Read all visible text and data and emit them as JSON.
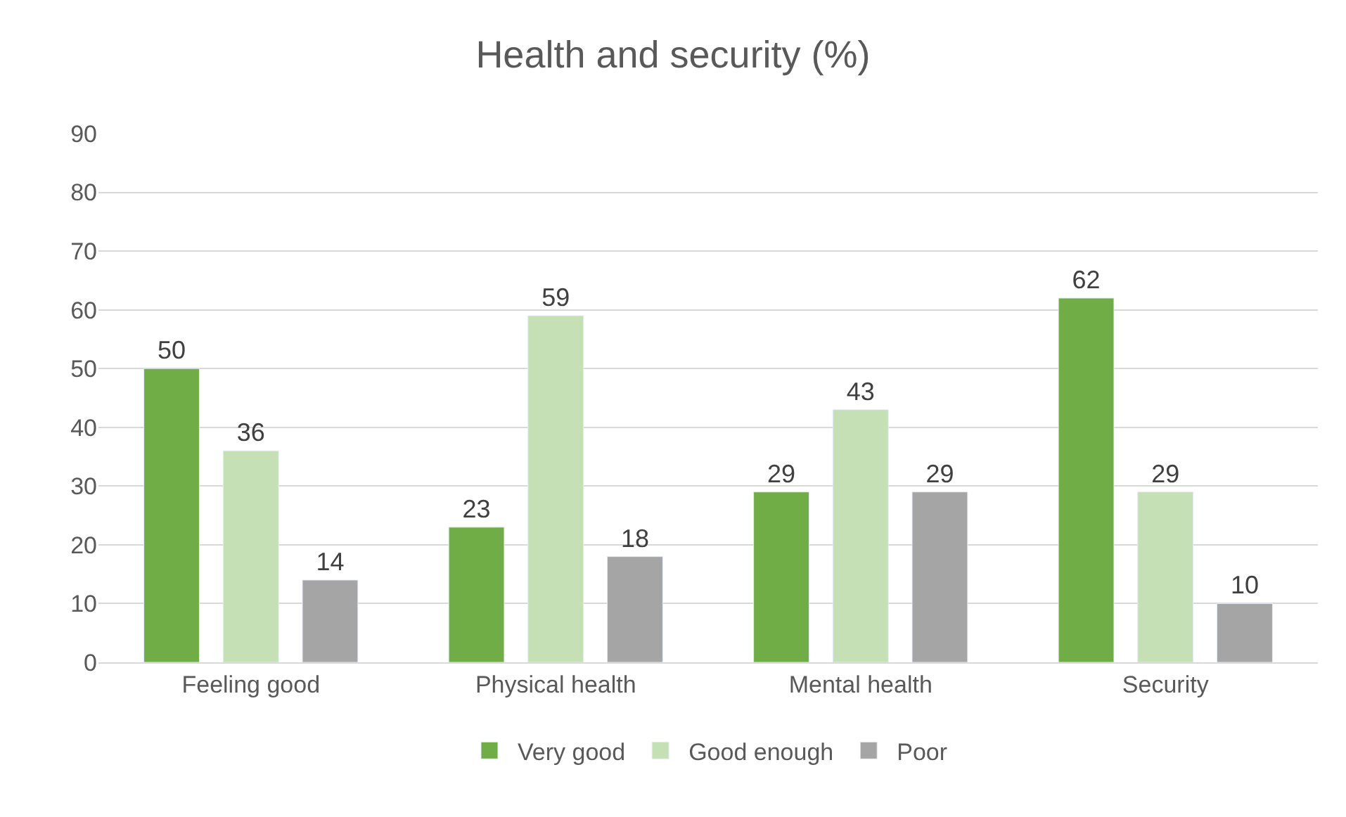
{
  "chart_data": {
    "type": "bar",
    "title": "Health and security (%)",
    "categories": [
      "Feeling good",
      "Physical health",
      "Mental health",
      "Security"
    ],
    "series": [
      {
        "name": "Very good",
        "color": "#70ad47",
        "values": [
          50,
          23,
          29,
          62
        ]
      },
      {
        "name": "Good enough",
        "color": "#c5e0b4",
        "values": [
          36,
          59,
          43,
          29
        ]
      },
      {
        "name": "Poor",
        "color": "#a5a5a5",
        "values": [
          14,
          18,
          29,
          10
        ]
      }
    ],
    "ylim": [
      0,
      90
    ],
    "yticks": [
      0,
      10,
      20,
      30,
      40,
      50,
      60,
      70,
      80,
      90
    ],
    "grid": "y",
    "legend": "bottom",
    "data_labels": true
  }
}
